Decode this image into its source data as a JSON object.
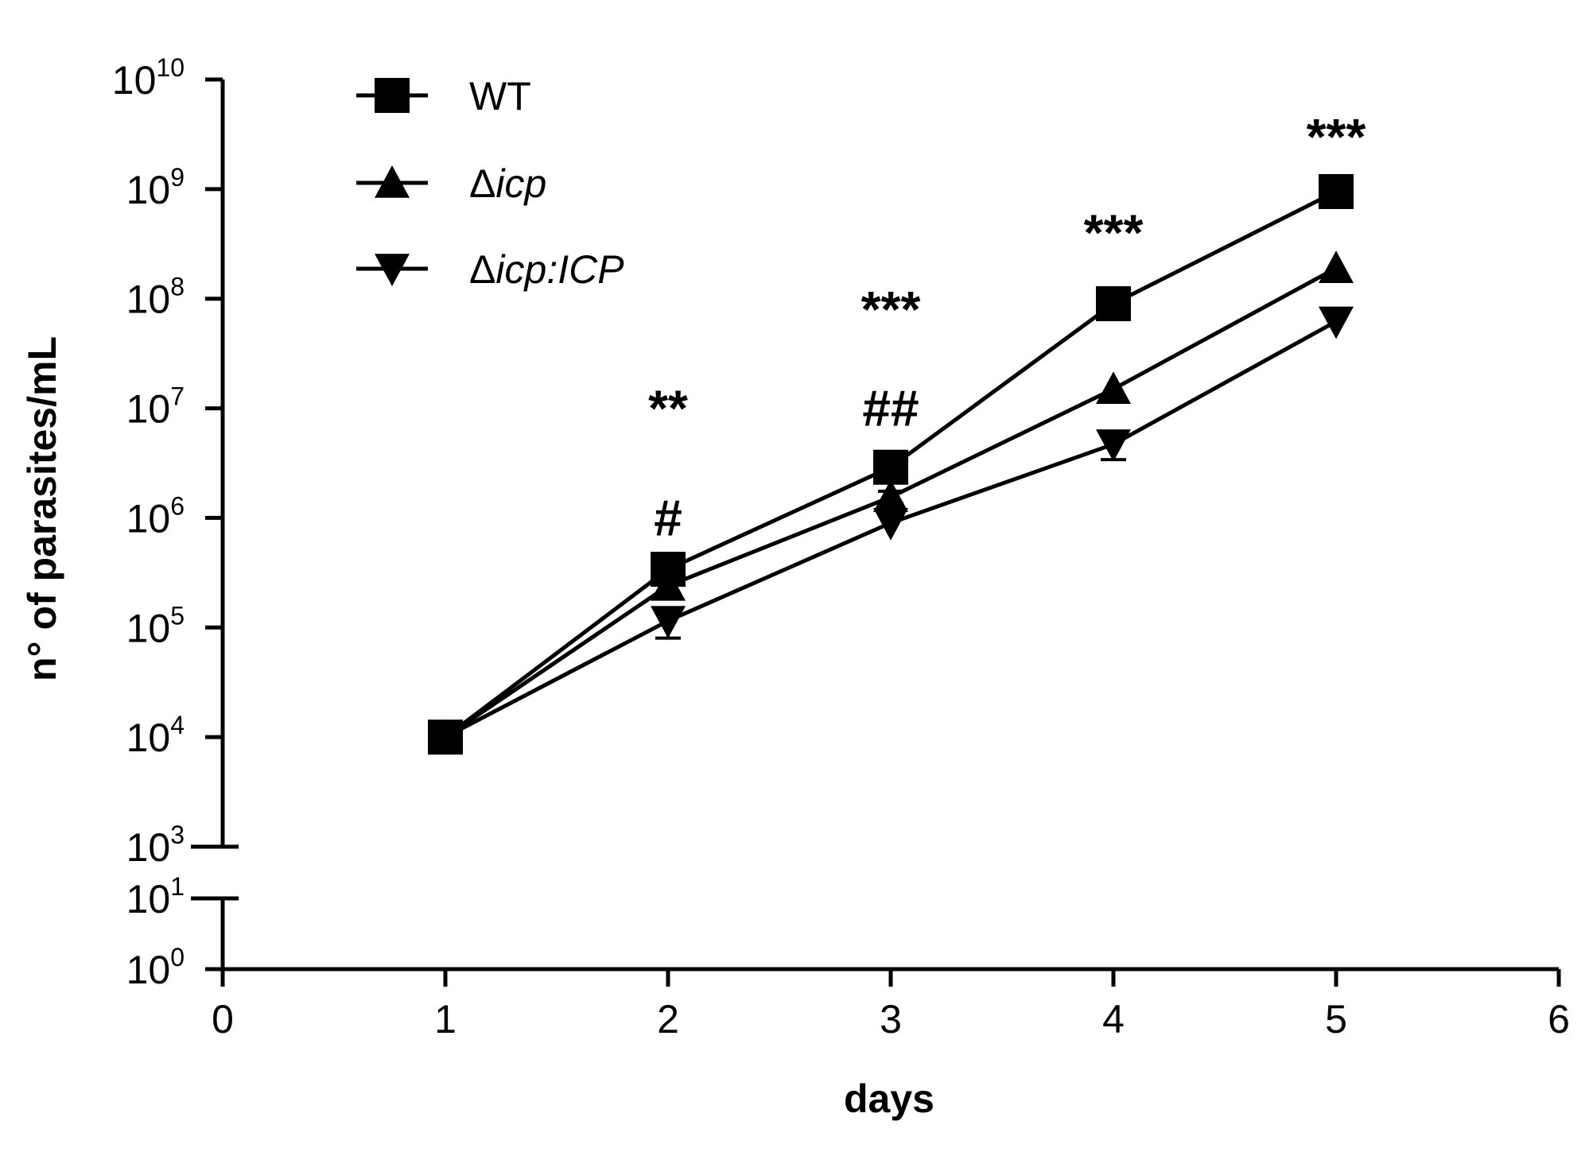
{
  "chart_data": {
    "type": "line",
    "xlabel": "days",
    "ylabel": "n° of parasites/mL",
    "yscale": "log10",
    "xlim": [
      0,
      6
    ],
    "x_ticks": [
      "0",
      "1",
      "2",
      "3",
      "4",
      "5",
      "6"
    ],
    "y_axis_break": true,
    "y_lower_segment": {
      "range_exponent": [
        0,
        1
      ],
      "tick_exponents": [
        0,
        1
      ]
    },
    "y_upper_segment": {
      "range_exponent": [
        3,
        10
      ],
      "tick_exponents": [
        3,
        4,
        5,
        6,
        7,
        8,
        9,
        10
      ]
    },
    "y_tick_base": "10",
    "legend_position": "top-left",
    "series": [
      {
        "name": "WT",
        "legend_prefix": "",
        "legend_italic": "WT",
        "italic": false,
        "marker": "square",
        "x": [
          1,
          2,
          3,
          4,
          5
        ],
        "values": [
          10000,
          340000,
          2900000,
          90000000,
          950000000
        ],
        "error": [
          0,
          0,
          0,
          0,
          0
        ]
      },
      {
        "name": "Δicp",
        "legend_prefix": "Δ",
        "legend_italic": "icp",
        "italic": true,
        "marker": "triangle-up",
        "x": [
          1,
          2,
          3,
          4,
          5
        ],
        "values": [
          10000,
          240000,
          1550000,
          15000000,
          190000000
        ],
        "error": [
          0,
          0,
          200000,
          0,
          0
        ]
      },
      {
        "name": "Δicp:ICP",
        "legend_prefix": "Δ",
        "legend_italic": "icp:ICP",
        "italic": true,
        "marker": "triangle-down",
        "x": [
          1,
          2,
          3,
          4,
          5
        ],
        "values": [
          10000,
          115000,
          900000,
          4700000,
          62000000
        ],
        "error": [
          0,
          35000,
          0,
          1300000,
          0
        ]
      }
    ],
    "annotations": [
      {
        "x": 2,
        "y": 10000000,
        "text": "**"
      },
      {
        "x": 2,
        "y": 1000000,
        "text": "#"
      },
      {
        "x": 3,
        "y": 80000000,
        "text": "***"
      },
      {
        "x": 3,
        "y": 10000000,
        "text": "##"
      },
      {
        "x": 4,
        "y": 400000000,
        "text": "***"
      },
      {
        "x": 5,
        "y": 3000000000,
        "text": "***"
      }
    ]
  }
}
